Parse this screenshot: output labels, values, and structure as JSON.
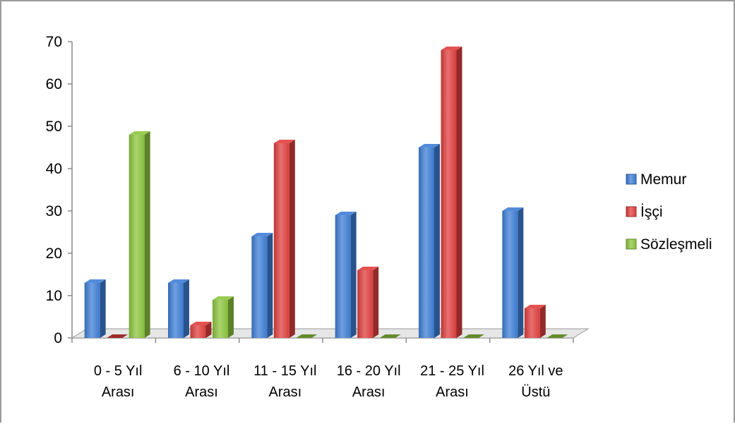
{
  "chart_data": {
    "type": "bar",
    "title": "",
    "xlabel": "",
    "ylabel": "",
    "ylim": [
      0,
      70
    ],
    "yticks": [
      0,
      10,
      20,
      30,
      40,
      50,
      60,
      70
    ],
    "categories": [
      [
        "0 - 5 Yıl",
        "Arası"
      ],
      [
        "6 - 10 Yıl",
        "Arası"
      ],
      [
        "11 - 15 Yıl",
        "Arası"
      ],
      [
        "16 - 20 Yıl",
        "Arası"
      ],
      [
        "21 - 25 Yıl",
        "Arası"
      ],
      [
        "26 Yıl ve",
        "Üstü"
      ]
    ],
    "series": [
      {
        "name": "Memur",
        "color": "#3f7fd6",
        "values": [
          13,
          13,
          24,
          29,
          45,
          30
        ]
      },
      {
        "name": "İşçi",
        "color": "#e0403f",
        "values": [
          0,
          3,
          46,
          16,
          68,
          7
        ]
      },
      {
        "name": "Sözleşmeli",
        "color": "#8dc63f",
        "values": [
          48,
          9,
          0,
          0,
          0,
          0
        ]
      }
    ],
    "grid": false,
    "legend_position": "right",
    "style": "3d"
  }
}
